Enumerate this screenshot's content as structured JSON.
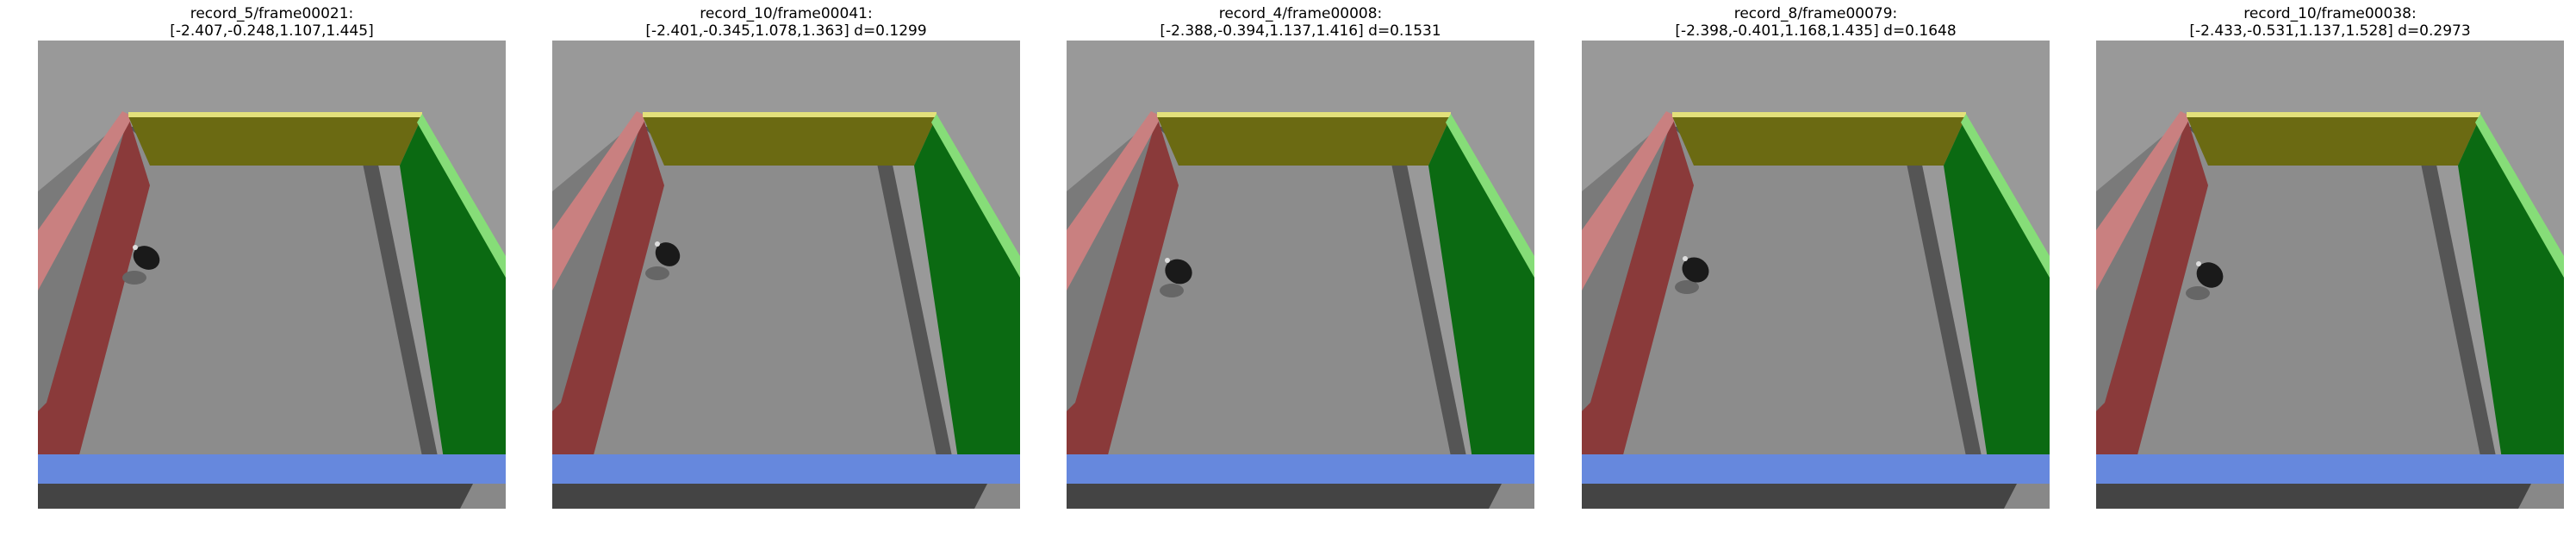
{
  "figure": {
    "panels": [
      {
        "record": "record_5/frame00021:",
        "coords": "[-2.407,-0.248,1.107,1.445]",
        "robot": "black-robot"
      },
      {
        "record": "record_10/frame00041:",
        "coords": "[-2.401,-0.345,1.078,1.363] d=0.1299",
        "robot": "black-robot"
      },
      {
        "record": "record_4/frame00008:",
        "coords": "[-2.388,-0.394,1.137,1.416] d=0.1531",
        "robot": "black-robot"
      },
      {
        "record": "record_8/frame00079:",
        "coords": "[-2.398,-0.401,1.168,1.435] d=0.1648",
        "robot": "black-robot"
      },
      {
        "record": "record_10/frame00038:",
        "coords": "[-2.433,-0.531,1.137,1.528] d=0.2973",
        "robot": "black-robot"
      }
    ],
    "colors": {
      "background_gray": "#999999",
      "floor_gray": "#8c8c8c",
      "inner_shadow": "#555555",
      "left_wall_red": "#8a3a3a",
      "left_wall_top_pink": "#c98080",
      "back_wall_olive": "#6b6a12",
      "back_wall_top_yellow": "#e3e07a",
      "right_wall_green": "#0b6a12",
      "right_wall_top_lightgreen": "#86dd78",
      "front_wall_blue": "#6688dd",
      "robot_black": "#1a1a1a"
    }
  }
}
